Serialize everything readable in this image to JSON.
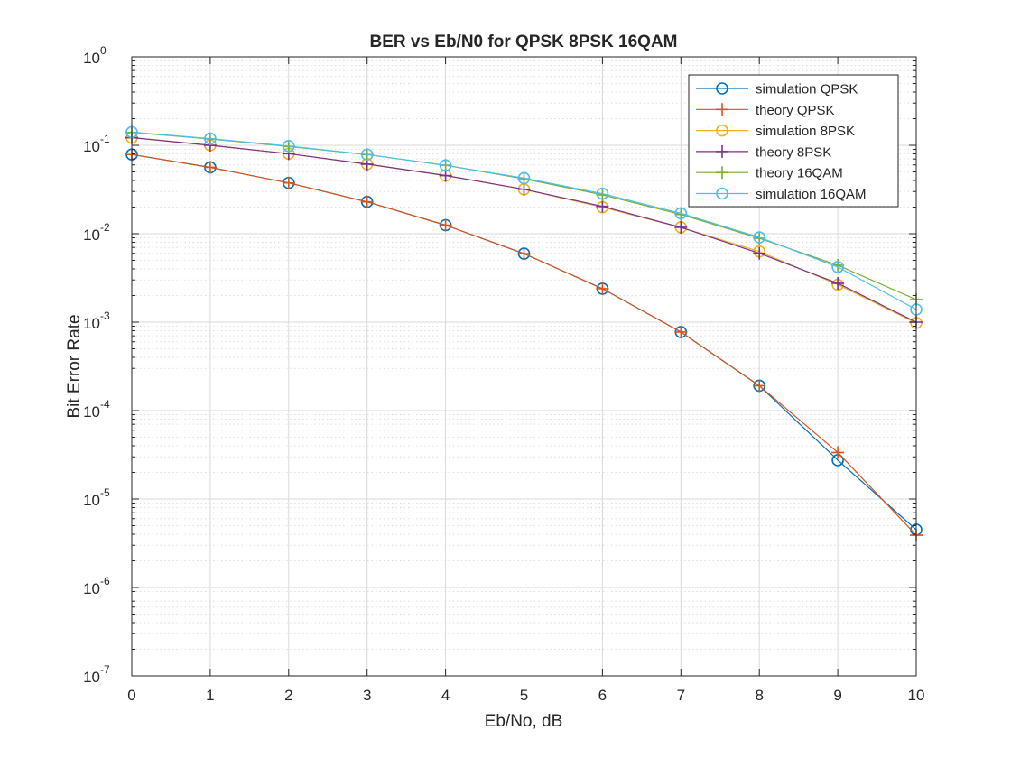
{
  "chart_data": {
    "type": "line",
    "title": "BER vs Eb/N0 for QPSK 8PSK 16QAM",
    "xlabel": "Eb/No, dB",
    "ylabel": "Bit Error Rate",
    "xlim": [
      0,
      10
    ],
    "ylim": [
      1e-07,
      1
    ],
    "yscale": "log",
    "grid": true,
    "legend_position": "top-right",
    "x_ticks": [
      "0",
      "1",
      "2",
      "3",
      "4",
      "5",
      "6",
      "7",
      "8",
      "9",
      "10"
    ],
    "y_ticks": [
      {
        "base": "10",
        "exp": "0",
        "value": 1
      },
      {
        "base": "10",
        "exp": "-1",
        "value": 0.1
      },
      {
        "base": "10",
        "exp": "-2",
        "value": 0.01
      },
      {
        "base": "10",
        "exp": "-3",
        "value": 0.001
      },
      {
        "base": "10",
        "exp": "-4",
        "value": 0.0001
      },
      {
        "base": "10",
        "exp": "-5",
        "value": 1e-05
      },
      {
        "base": "10",
        "exp": "-6",
        "value": 1e-06
      },
      {
        "base": "10",
        "exp": "-7",
        "value": 1e-07
      }
    ],
    "x": [
      0,
      1,
      2,
      3,
      4,
      5,
      6,
      7,
      8,
      9,
      10
    ],
    "series": [
      {
        "name": "simulation QPSK",
        "marker": "o",
        "color": "#0072BD",
        "values": [
          0.0786,
          0.0563,
          0.0375,
          0.0229,
          0.0125,
          0.00595,
          0.00239,
          0.000774,
          0.000191,
          2.75e-05,
          4.5e-06
        ]
      },
      {
        "name": "theory QPSK",
        "marker": "+",
        "color": "#D95319",
        "values": [
          0.0786,
          0.0563,
          0.0375,
          0.0229,
          0.0125,
          0.00595,
          0.00239,
          0.000773,
          0.000191,
          3.36e-05,
          3.9e-06
        ]
      },
      {
        "name": "simulation 8PSK",
        "marker": "o",
        "color": "#EDB120",
        "values": [
          0.122,
          0.1,
          0.0803,
          0.0612,
          0.0455,
          0.0318,
          0.0199,
          0.0118,
          0.0063,
          0.00265,
          0.00098
        ]
      },
      {
        "name": "theory 8PSK",
        "marker": "+",
        "color": "#7E2F8E",
        "values": [
          0.122,
          0.1,
          0.0803,
          0.0612,
          0.0455,
          0.0318,
          0.0204,
          0.0118,
          0.006,
          0.00275,
          0.001
        ]
      },
      {
        "name": "theory 16QAM",
        "marker": "+",
        "color": "#77AC30",
        "values": [
          0.14,
          0.118,
          0.097,
          0.0785,
          0.0595,
          0.0418,
          0.0275,
          0.0165,
          0.0089,
          0.0044,
          0.0018
        ]
      },
      {
        "name": "simulation 16QAM",
        "marker": "o",
        "color": "#4DBEEE",
        "values": [
          0.141,
          0.119,
          0.098,
          0.0786,
          0.0592,
          0.0425,
          0.0284,
          0.017,
          0.0091,
          0.0042,
          0.00139
        ]
      }
    ]
  }
}
